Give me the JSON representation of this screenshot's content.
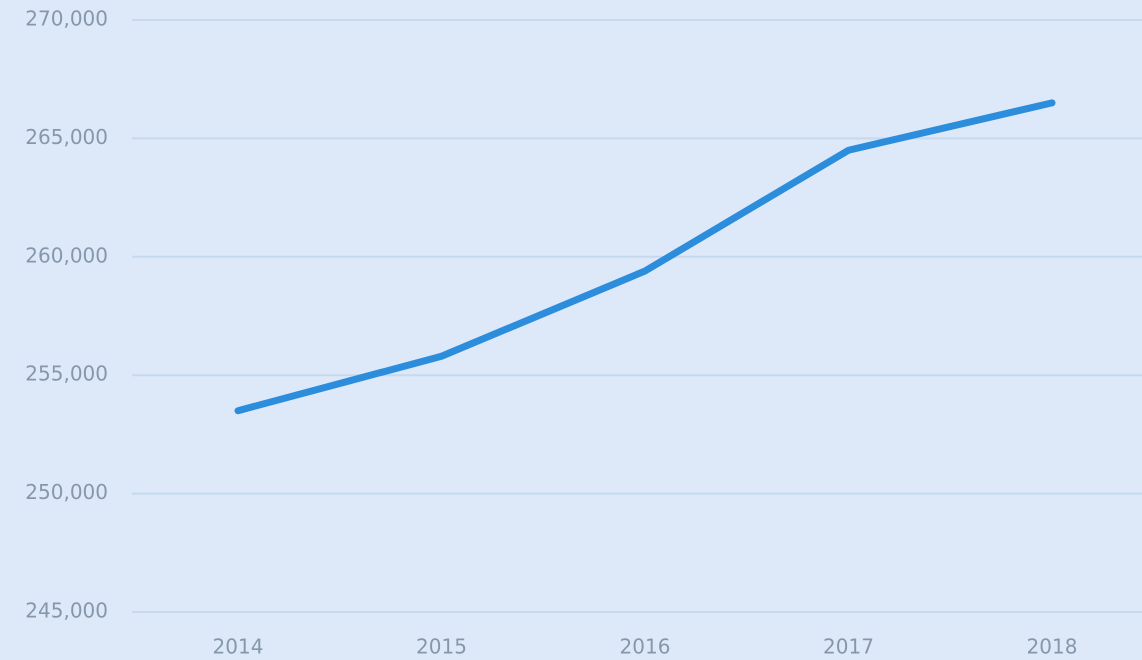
{
  "chart_data": {
    "type": "line",
    "categories": [
      "2014",
      "2015",
      "2016",
      "2017",
      "2018"
    ],
    "series": [
      {
        "color": "#2b8ddc",
        "values": [
          253500,
          255800,
          259400,
          264500,
          266500
        ]
      }
    ],
    "ylim": [
      245000,
      270000
    ],
    "yticks": [
      {
        "value": 245000,
        "label": "245,000"
      },
      {
        "value": 250000,
        "label": "250,000"
      },
      {
        "value": 255000,
        "label": "255,000"
      },
      {
        "value": 260000,
        "label": "260,000"
      },
      {
        "value": 265000,
        "label": "265,000"
      },
      {
        "value": 270000,
        "label": "270,000"
      }
    ],
    "grid": true
  }
}
